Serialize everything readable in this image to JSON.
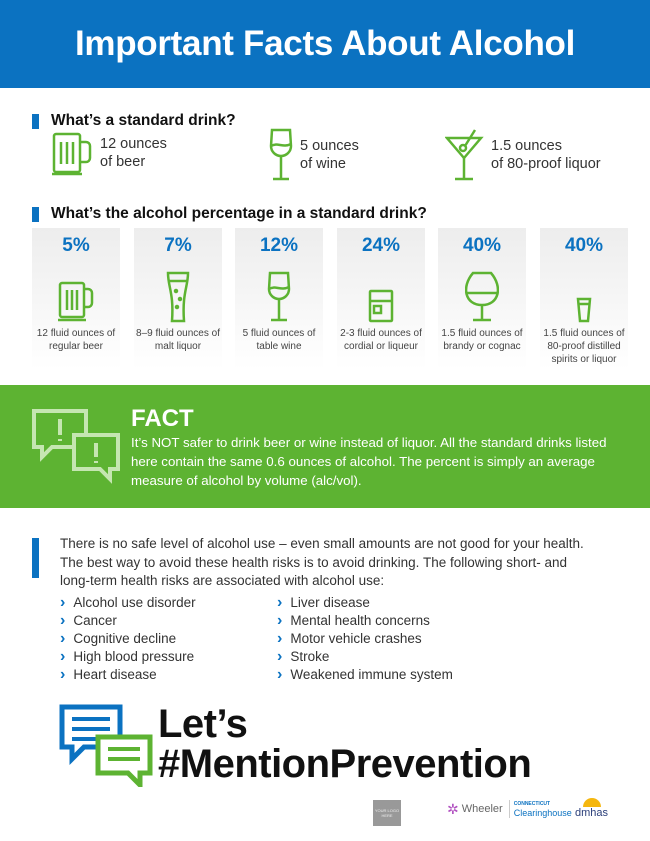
{
  "header": {
    "title": "Important Facts About Alcohol"
  },
  "standard": {
    "heading": "What’s a standard drink?",
    "items": [
      {
        "icon": "beer-mug-icon",
        "line1": "12 ounces",
        "line2": "of beer"
      },
      {
        "icon": "wine-glass-icon",
        "line1": "5 ounces",
        "line2": "of wine"
      },
      {
        "icon": "martini-glass-icon",
        "line1": "1.5 ounces",
        "line2": "of 80-proof liquor"
      }
    ]
  },
  "percentage": {
    "heading": "What’s the alcohol percentage in a standard drink?",
    "cards": [
      {
        "pct": "5%",
        "icon": "beer-mug-icon",
        "label": "12 fluid ounces of regular beer"
      },
      {
        "pct": "7%",
        "icon": "malt-liquor-glass-icon",
        "label": "8–9 fluid ounces of malt liquor"
      },
      {
        "pct": "12%",
        "icon": "wine-glass-icon",
        "label": "5 fluid ounces of table wine"
      },
      {
        "pct": "24%",
        "icon": "rocks-glass-icon",
        "label": "2-3 fluid ounces of cordial or liqueur"
      },
      {
        "pct": "40%",
        "icon": "brandy-snifter-icon",
        "label": "1.5 fluid ounces of brandy or cognac"
      },
      {
        "pct": "40%",
        "icon": "shot-glass-icon",
        "label": "1.5 fluid ounces of 80-proof distilled spirits or liquor"
      }
    ]
  },
  "fact": {
    "title": "FACT",
    "body": "It’s NOT safer to drink beer or wine instead of liquor. All the standard drinks listed here contain the same 0.6 ounces of alcohol. The percent is simply an average measure of alcohol by volume (alc/vol)."
  },
  "risks": {
    "intro": "There is no safe level of alcohol use – even small amounts are not good for your health. The best way to avoid these health risks is to avoid drinking. The following short- and long-term health risks are associated with alcohol use:",
    "col1": [
      "Alcohol use disorder",
      "Cancer",
      "Cognitive decline",
      "High blood pressure",
      "Heart disease"
    ],
    "col2": [
      "Liver disease",
      "Mental health concerns",
      "Motor vehicle crashes",
      "Stroke",
      "Weakened immune system"
    ]
  },
  "cta": {
    "line1": "Let’s",
    "line2": "#MentionPrevention"
  },
  "logos": {
    "placeholder": "YOUR LOGO HERE",
    "wheeler": "Wheeler",
    "clearinghouse_top": "CONNECTICUT",
    "clearinghouse": "Clearinghouse",
    "dmhas": "dmhas"
  },
  "colors": {
    "blue": "#0b72c1",
    "green": "#5db332"
  }
}
